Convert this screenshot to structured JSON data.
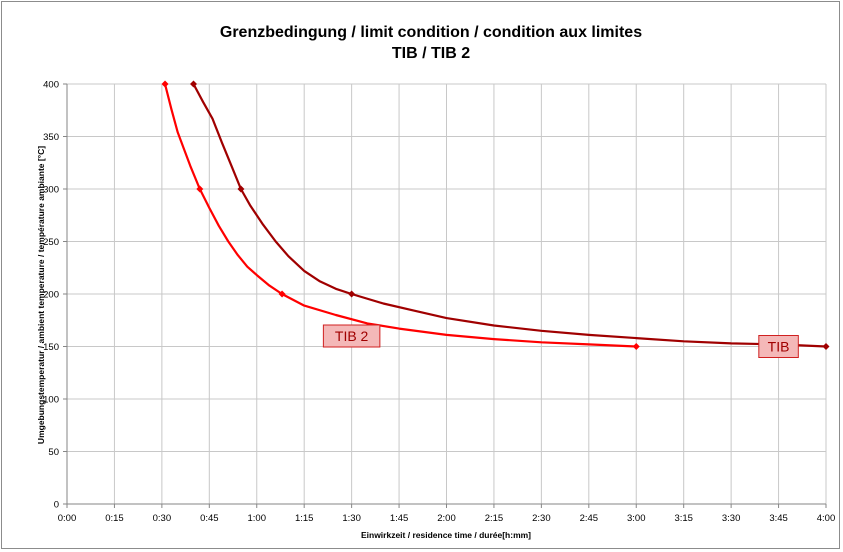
{
  "chart_data": {
    "type": "line",
    "title": "Grenzbedingung / limit condition / condition aux limites",
    "subtitle": "TIB / TIB 2",
    "xlabel": "Einwirkzeit /  residence time  / durée[h:mm]",
    "ylabel": "Umgebungstemperatur / ambient temperature / température ambiante [°C]",
    "x_unit": "minutes",
    "xlim": [
      0,
      240
    ],
    "ylim": [
      0,
      400
    ],
    "x_ticks": [
      0,
      15,
      30,
      45,
      60,
      75,
      90,
      105,
      120,
      135,
      150,
      165,
      180,
      195,
      210,
      225,
      240
    ],
    "x_tick_labels": [
      "0:00",
      "0:15",
      "0:30",
      "0:45",
      "1:00",
      "1:15",
      "1:30",
      "1:45",
      "2:00",
      "2:15",
      "2:30",
      "2:45",
      "3:00",
      "3:15",
      "3:30",
      "3:45",
      "4:00"
    ],
    "y_ticks": [
      0,
      50,
      100,
      150,
      200,
      250,
      300,
      350,
      400
    ],
    "y_tick_labels": [
      "0",
      "50",
      "100",
      "150",
      "200",
      "250",
      "300",
      "350",
      "400"
    ],
    "grid": true,
    "series": [
      {
        "name": "TIB",
        "color": "#a00000",
        "points": [
          [
            40,
            400
          ],
          [
            55,
            300
          ],
          [
            90,
            200
          ],
          [
            240,
            150
          ]
        ],
        "curve": [
          [
            40,
            400
          ],
          [
            43,
            383
          ],
          [
            46,
            367
          ],
          [
            49,
            344
          ],
          [
            52,
            322
          ],
          [
            55,
            300
          ],
          [
            58,
            284
          ],
          [
            62,
            266
          ],
          [
            66,
            250
          ],
          [
            70,
            236
          ],
          [
            75,
            222
          ],
          [
            80,
            212
          ],
          [
            85,
            205
          ],
          [
            90,
            200
          ],
          [
            100,
            191
          ],
          [
            110,
            184
          ],
          [
            120,
            177
          ],
          [
            135,
            170
          ],
          [
            150,
            165
          ],
          [
            165,
            161
          ],
          [
            180,
            158
          ],
          [
            195,
            155
          ],
          [
            210,
            153
          ],
          [
            225,
            152
          ],
          [
            240,
            150
          ]
        ]
      },
      {
        "name": "TIB 2",
        "color": "#ff0000",
        "points": [
          [
            31,
            400
          ],
          [
            42,
            300
          ],
          [
            68,
            200
          ],
          [
            180,
            150
          ]
        ],
        "curve": [
          [
            31,
            400
          ],
          [
            33,
            376
          ],
          [
            35,
            354
          ],
          [
            37,
            338
          ],
          [
            39,
            322
          ],
          [
            42,
            300
          ],
          [
            45,
            282
          ],
          [
            48,
            265
          ],
          [
            51,
            250
          ],
          [
            54,
            237
          ],
          [
            57,
            226
          ],
          [
            60,
            218
          ],
          [
            64,
            208
          ],
          [
            68,
            200
          ],
          [
            75,
            189
          ],
          [
            85,
            180
          ],
          [
            95,
            172
          ],
          [
            105,
            167
          ],
          [
            120,
            161
          ],
          [
            135,
            157
          ],
          [
            150,
            154
          ],
          [
            165,
            152
          ],
          [
            180,
            150
          ]
        ]
      }
    ],
    "annotations": [
      {
        "text": "TIB 2",
        "x": 90,
        "y": 160
      },
      {
        "text": "TIB",
        "x": 225,
        "y": 150
      }
    ]
  }
}
